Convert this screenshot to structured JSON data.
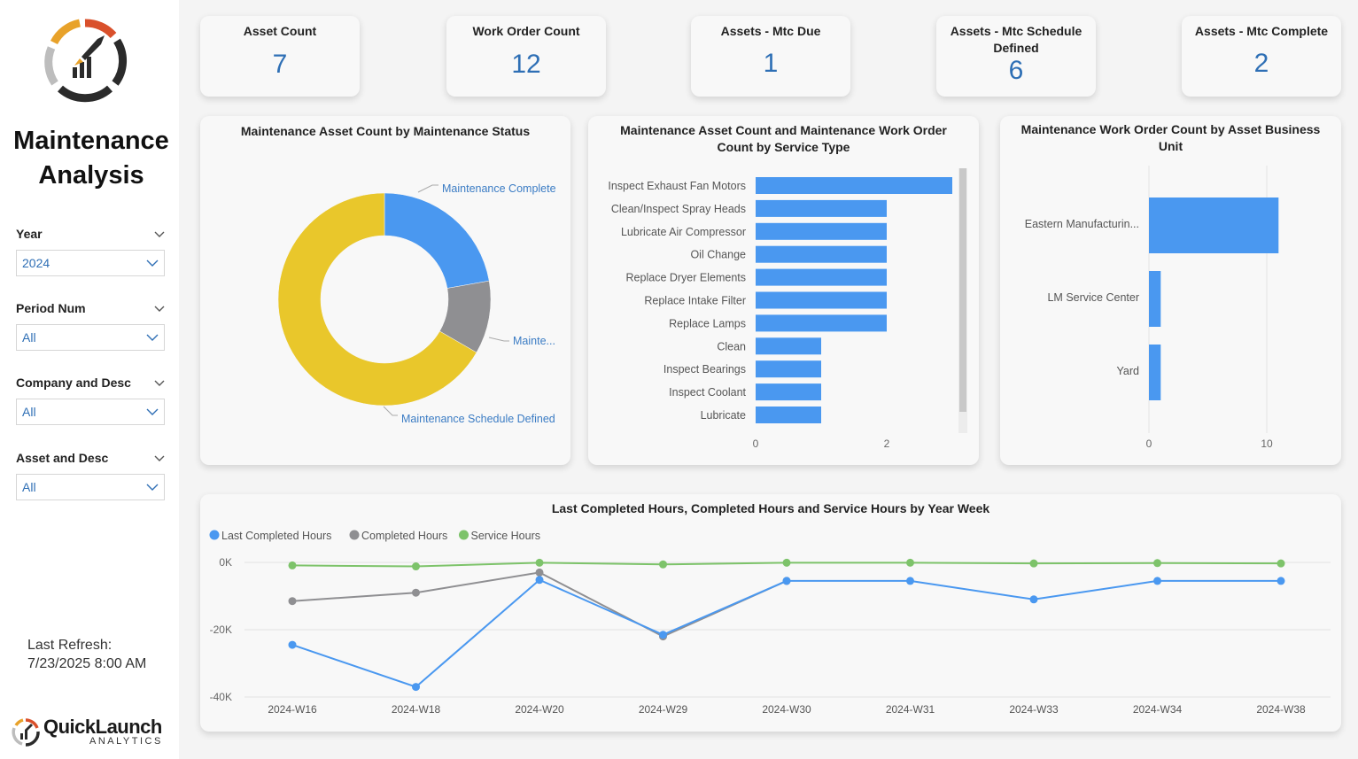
{
  "sidebar": {
    "title_line1": "Maintenance",
    "title_line2": "Analysis",
    "slicers": [
      {
        "label": "Year",
        "value": "2024"
      },
      {
        "label": "Period Num",
        "value": "All"
      },
      {
        "label": "Company and Desc",
        "value": "All"
      },
      {
        "label": "Asset and Desc",
        "value": "All"
      }
    ],
    "refresh_label": "Last Refresh:",
    "refresh_value": "7/23/2025 8:00 AM",
    "brand_name": "QuickLaunch",
    "brand_sub": "ANALYTICS"
  },
  "kpis": [
    {
      "title": "Asset Count",
      "value": "7"
    },
    {
      "title": "Work Order Count",
      "value": "12"
    },
    {
      "title": "Assets - Mtc Due",
      "value": "1"
    },
    {
      "title": "Assets - Mtc Schedule Defined",
      "value": "6"
    },
    {
      "title": "Assets - Mtc Complete",
      "value": "2"
    }
  ],
  "colors": {
    "blue": "#4a98f0",
    "gray": "#8f8f92",
    "yellow": "#e9c72b",
    "green": "#7dc36a",
    "kpi_value": "#2e6fb5",
    "label_blue": "#3b7cc4"
  },
  "chart_data": [
    {
      "type": "pie",
      "title": "Maintenance Asset Count by Maintenance Status",
      "slices": [
        {
          "label": "Maintenance Complete",
          "value": 2,
          "color": "#4a98f0"
        },
        {
          "label": "Mainte...",
          "value": 1,
          "color": "#8f8f92"
        },
        {
          "label": "Maintenance Schedule Defined",
          "value": 6,
          "color": "#e9c72b"
        }
      ],
      "donut": true
    },
    {
      "type": "bar",
      "orientation": "horizontal",
      "title_line1": "Maintenance Asset Count and Maintenance Work Order",
      "title_line2": "Count by Service Type",
      "categories": [
        "Inspect Exhaust Fan Motors",
        "Clean/Inspect Spray Heads",
        "Lubricate Air Compressor",
        "Oil Change",
        "Replace Dryer Elements",
        "Replace Intake Filter",
        "Replace Lamps",
        "Clean",
        "Inspect Bearings",
        "Inspect Coolant",
        "Lubricate"
      ],
      "values": [
        3,
        2,
        2,
        2,
        2,
        2,
        2,
        1,
        1,
        1,
        1
      ],
      "xlim": [
        0,
        3
      ],
      "xticks": [
        "0",
        "2"
      ],
      "color": "#4a98f0",
      "scrollbar": true
    },
    {
      "type": "bar",
      "orientation": "horizontal",
      "title_line1": "Maintenance Work Order Count by Asset Business",
      "title_line2": "Unit",
      "categories": [
        "Eastern Manufacturin...",
        "LM Service Center",
        "Yard"
      ],
      "values": [
        11,
        1,
        1
      ],
      "xlim": [
        0,
        12
      ],
      "xticks": [
        "0",
        "10"
      ],
      "color": "#4a98f0"
    },
    {
      "type": "line",
      "title": "Last Completed Hours, Completed Hours and Service Hours by Year Week",
      "x": [
        "2024-W16",
        "2024-W18",
        "2024-W20",
        "2024-W29",
        "2024-W30",
        "2024-W31",
        "2024-W33",
        "2024-W34",
        "2024-W38"
      ],
      "ylim": [
        -40000,
        0
      ],
      "yticks": [
        "0K",
        "-20K",
        "-40K"
      ],
      "grid": true,
      "legend_position": "top-left",
      "series": [
        {
          "name": "Last Completed Hours",
          "color": "#4a98f0",
          "values": [
            -24500,
            -37000,
            -5200,
            -21500,
            -5500,
            -5500,
            -11000,
            -5500,
            -5500
          ]
        },
        {
          "name": "Completed Hours",
          "color": "#8f8f92",
          "values": [
            -11500,
            -9000,
            -3000,
            -22000,
            -5500,
            null,
            null,
            null,
            null
          ]
        },
        {
          "name": "Service Hours",
          "color": "#7dc36a",
          "values": [
            -900,
            -1200,
            -100,
            -600,
            -100,
            -100,
            -300,
            -200,
            -300
          ]
        }
      ]
    }
  ]
}
